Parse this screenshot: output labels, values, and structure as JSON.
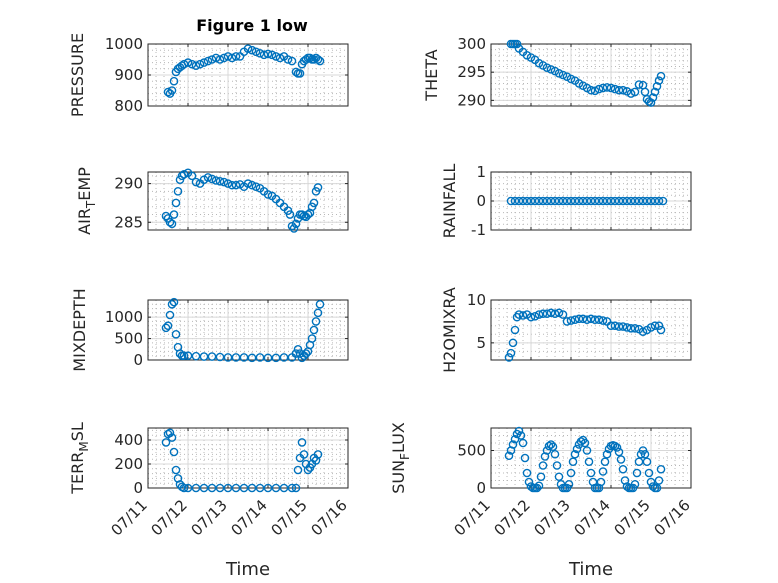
{
  "title": "Figure 1 low",
  "style": {
    "marker_color": "#0072BD",
    "grid": true,
    "minor_grid": true
  },
  "chart_data": [
    {
      "type": "scatter",
      "ylabel": "PRESSURE",
      "ylim": [
        800,
        1000
      ],
      "yticks": [
        800,
        900,
        1000
      ],
      "yticklabels": [
        "800",
        "900",
        "1000"
      ],
      "x": [
        11.5,
        11.55,
        11.6,
        11.65,
        11.7,
        11.75,
        11.8,
        11.85,
        11.9,
        12.0,
        12.1,
        12.2,
        12.3,
        12.4,
        12.5,
        12.6,
        12.7,
        12.8,
        12.9,
        13.0,
        13.1,
        13.2,
        13.3,
        13.4,
        13.5,
        13.6,
        13.7,
        13.8,
        13.9,
        14.0,
        14.1,
        14.2,
        14.3,
        14.4,
        14.5,
        14.6,
        14.7,
        14.75,
        14.8,
        14.85,
        14.9,
        14.95,
        15.0,
        15.05,
        15.1,
        15.15,
        15.2,
        15.25,
        15.3
      ],
      "y": [
        845,
        840,
        850,
        880,
        910,
        920,
        925,
        930,
        935,
        940,
        935,
        930,
        935,
        940,
        945,
        950,
        955,
        950,
        955,
        960,
        955,
        960,
        960,
        975,
        985,
        980,
        975,
        970,
        965,
        968,
        965,
        960,
        955,
        960,
        950,
        945,
        910,
        905,
        905,
        935,
        945,
        950,
        955,
        955,
        950,
        950,
        955,
        950,
        945
      ]
    },
    {
      "type": "scatter",
      "ylabel": "THETA",
      "ylim": [
        289,
        300
      ],
      "yticks": [
        290,
        295,
        300
      ],
      "yticklabels": [
        "290",
        "295",
        "300"
      ],
      "x": [
        11.5,
        11.55,
        11.6,
        11.65,
        11.7,
        11.8,
        11.9,
        12.0,
        12.1,
        12.2,
        12.3,
        12.4,
        12.5,
        12.6,
        12.7,
        12.8,
        12.9,
        13.0,
        13.1,
        13.2,
        13.3,
        13.4,
        13.5,
        13.6,
        13.7,
        13.8,
        13.9,
        14.0,
        14.1,
        14.2,
        14.3,
        14.4,
        14.5,
        14.6,
        14.7,
        14.8,
        14.85,
        14.9,
        14.95,
        15.0,
        15.05,
        15.1,
        15.15,
        15.2,
        15.25
      ],
      "y": [
        300,
        300,
        300,
        300,
        299.2,
        298.6,
        298,
        297.6,
        297.2,
        296.6,
        296.2,
        295.8,
        295.5,
        295.2,
        294.8,
        294.5,
        294.2,
        293.8,
        293.5,
        293.0,
        292.6,
        292.2,
        291.8,
        291.7,
        292.0,
        292.2,
        292.3,
        292.2,
        292.0,
        291.8,
        291.8,
        291.6,
        291.2,
        291.5,
        292.8,
        292.7,
        291.5,
        290.2,
        289.8,
        289.6,
        290.5,
        291.5,
        292.5,
        293.5,
        294.3
      ]
    },
    {
      "type": "scatter",
      "ylabel": "AIR_TEMP",
      "ylim": [
        284,
        291.5
      ],
      "yticks": [
        285,
        290
      ],
      "yticklabels": [
        "285",
        "290"
      ],
      "x": [
        11.45,
        11.5,
        11.55,
        11.6,
        11.65,
        11.7,
        11.75,
        11.8,
        11.85,
        11.9,
        12.0,
        12.1,
        12.2,
        12.3,
        12.4,
        12.5,
        12.6,
        12.7,
        12.8,
        12.9,
        13.0,
        13.1,
        13.2,
        13.3,
        13.4,
        13.5,
        13.6,
        13.7,
        13.8,
        13.9,
        14.0,
        14.1,
        14.2,
        14.3,
        14.4,
        14.5,
        14.55,
        14.6,
        14.65,
        14.7,
        14.75,
        14.8,
        14.85,
        14.9,
        14.95,
        15.0,
        15.05,
        15.1,
        15.15,
        15.2,
        15.25
      ],
      "y": [
        285.8,
        285.5,
        285.0,
        284.8,
        286.0,
        287.5,
        289.0,
        290.5,
        291.0,
        291.2,
        291.4,
        291.0,
        290.2,
        290.0,
        290.5,
        290.8,
        290.6,
        290.4,
        290.3,
        290.2,
        290.0,
        289.8,
        289.8,
        289.9,
        289.6,
        290.0,
        289.8,
        289.6,
        289.4,
        289.0,
        288.6,
        288.4,
        288.0,
        287.5,
        287.0,
        286.5,
        286.0,
        284.5,
        284.2,
        284.8,
        285.5,
        286.0,
        286.0,
        285.8,
        285.7,
        286.0,
        286.2,
        287.0,
        287.5,
        289.0,
        289.5
      ]
    },
    {
      "type": "scatter",
      "ylabel": "RAINFALL",
      "ylim": [
        -1,
        1
      ],
      "yticks": [
        -1,
        0,
        1
      ],
      "yticklabels": [
        "-1",
        "0",
        "1"
      ],
      "x": [
        11.5,
        11.6,
        11.7,
        11.8,
        11.9,
        12.0,
        12.1,
        12.2,
        12.3,
        12.4,
        12.5,
        12.6,
        12.7,
        12.8,
        12.9,
        13.0,
        13.1,
        13.2,
        13.3,
        13.4,
        13.5,
        13.6,
        13.7,
        13.8,
        13.9,
        14.0,
        14.1,
        14.2,
        14.3,
        14.4,
        14.5,
        14.6,
        14.7,
        14.8,
        14.9,
        15.0,
        15.1,
        15.2,
        15.3
      ],
      "y": [
        0,
        0,
        0,
        0,
        0,
        0,
        0,
        0,
        0,
        0,
        0,
        0,
        0,
        0,
        0,
        0,
        0,
        0,
        0,
        0,
        0,
        0,
        0,
        0,
        0,
        0,
        0,
        0,
        0,
        0,
        0,
        0,
        0,
        0,
        0,
        0,
        0,
        0,
        0
      ]
    },
    {
      "type": "scatter",
      "ylabel": "MIXDEPTH",
      "ylim": [
        0,
        1400
      ],
      "yticks": [
        0,
        500,
        1000
      ],
      "yticklabels": [
        "0",
        "500",
        "1000"
      ],
      "x": [
        11.45,
        11.5,
        11.55,
        11.6,
        11.65,
        11.7,
        11.75,
        11.8,
        11.85,
        11.9,
        12.0,
        12.2,
        12.4,
        12.6,
        12.8,
        13.0,
        13.2,
        13.4,
        13.6,
        13.8,
        14.0,
        14.2,
        14.4,
        14.6,
        14.7,
        14.75,
        14.8,
        14.85,
        14.9,
        14.95,
        15.0,
        15.05,
        15.1,
        15.15,
        15.2,
        15.25,
        15.3
      ],
      "y": [
        750,
        800,
        1050,
        1300,
        1350,
        600,
        300,
        150,
        100,
        100,
        100,
        90,
        80,
        80,
        70,
        60,
        60,
        60,
        50,
        60,
        50,
        50,
        60,
        60,
        150,
        250,
        150,
        50,
        100,
        150,
        200,
        350,
        500,
        700,
        900,
        1100,
        1300
      ]
    },
    {
      "type": "scatter",
      "ylabel": "H2OMIXRA",
      "ylim": [
        3,
        10
      ],
      "yticks": [
        5,
        10
      ],
      "yticklabels": [
        "5",
        "10"
      ],
      "x": [
        11.45,
        11.5,
        11.55,
        11.6,
        11.65,
        11.7,
        11.8,
        11.9,
        12.0,
        12.1,
        12.2,
        12.3,
        12.4,
        12.5,
        12.6,
        12.7,
        12.8,
        12.9,
        13.0,
        13.1,
        13.2,
        13.3,
        13.4,
        13.5,
        13.6,
        13.7,
        13.8,
        13.9,
        14.0,
        14.1,
        14.2,
        14.3,
        14.4,
        14.5,
        14.6,
        14.7,
        14.8,
        14.9,
        15.0,
        15.1,
        15.2,
        15.25
      ],
      "y": [
        3.3,
        3.8,
        5.0,
        6.5,
        8.0,
        8.3,
        8.2,
        8.3,
        8.0,
        8.1,
        8.3,
        8.4,
        8.4,
        8.5,
        8.4,
        8.5,
        8.3,
        7.5,
        7.6,
        7.7,
        7.8,
        7.8,
        7.7,
        7.8,
        7.7,
        7.7,
        7.6,
        7.5,
        7.0,
        7.0,
        6.9,
        6.9,
        6.8,
        6.7,
        6.7,
        6.6,
        6.3,
        6.5,
        6.8,
        7.0,
        7.0,
        6.5
      ]
    },
    {
      "type": "scatter",
      "ylabel": "TERR_MSL",
      "ylim": [
        0,
        500
      ],
      "yticks": [
        0,
        200,
        400
      ],
      "yticklabels": [
        "0",
        "200",
        "400"
      ],
      "x": [
        11.45,
        11.5,
        11.55,
        11.6,
        11.65,
        11.7,
        11.75,
        11.8,
        11.85,
        11.9,
        12.0,
        12.2,
        12.4,
        12.6,
        12.8,
        13.0,
        13.2,
        13.4,
        13.6,
        13.8,
        14.0,
        14.2,
        14.4,
        14.6,
        14.7,
        14.75,
        14.8,
        14.85,
        14.9,
        14.95,
        15.0,
        15.05,
        15.1,
        15.15,
        15.2,
        15.25
      ],
      "y": [
        380,
        450,
        460,
        420,
        300,
        150,
        80,
        30,
        10,
        0,
        0,
        0,
        0,
        0,
        0,
        0,
        0,
        0,
        0,
        0,
        0,
        0,
        0,
        0,
        0,
        150,
        250,
        380,
        280,
        200,
        150,
        170,
        200,
        250,
        230,
        280
      ]
    },
    {
      "type": "scatter",
      "ylabel": "SUN_FLUX",
      "ylim": [
        0,
        800
      ],
      "yticks": [
        0,
        500
      ],
      "yticklabels": [
        "0",
        "500"
      ],
      "x": [
        11.45,
        11.5,
        11.55,
        11.6,
        11.65,
        11.7,
        11.75,
        11.8,
        11.85,
        11.9,
        11.95,
        12.0,
        12.05,
        12.1,
        12.15,
        12.2,
        12.25,
        12.3,
        12.35,
        12.4,
        12.45,
        12.5,
        12.55,
        12.6,
        12.65,
        12.7,
        12.75,
        12.8,
        12.85,
        12.9,
        12.95,
        13.0,
        13.05,
        13.1,
        13.15,
        13.2,
        13.25,
        13.3,
        13.35,
        13.4,
        13.45,
        13.5,
        13.55,
        13.6,
        13.65,
        13.7,
        13.75,
        13.8,
        13.85,
        13.9,
        13.95,
        14.0,
        14.05,
        14.1,
        14.15,
        14.2,
        14.25,
        14.3,
        14.35,
        14.4,
        14.45,
        14.5,
        14.55,
        14.6,
        14.65,
        14.7,
        14.75,
        14.8,
        14.85,
        14.9,
        14.95,
        15.0,
        15.05,
        15.1,
        15.15,
        15.2,
        15.25
      ],
      "y": [
        430,
        500,
        580,
        650,
        720,
        760,
        700,
        600,
        400,
        200,
        80,
        20,
        0,
        0,
        0,
        30,
        150,
        300,
        420,
        500,
        560,
        580,
        550,
        450,
        300,
        150,
        50,
        0,
        0,
        0,
        50,
        200,
        350,
        450,
        520,
        580,
        620,
        640,
        600,
        500,
        350,
        200,
        80,
        0,
        0,
        0,
        80,
        220,
        350,
        450,
        520,
        560,
        570,
        560,
        540,
        480,
        380,
        250,
        100,
        20,
        0,
        0,
        0,
        50,
        200,
        350,
        450,
        500,
        450,
        350,
        200,
        80,
        20,
        0,
        0,
        100,
        250
      ]
    }
  ],
  "xaxis": {
    "label": "Time",
    "ticks": [
      11,
      12,
      13,
      14,
      15,
      16
    ],
    "ticklabels": [
      "07/11",
      "07/12",
      "07/13",
      "07/14",
      "07/15",
      "07/16"
    ]
  }
}
